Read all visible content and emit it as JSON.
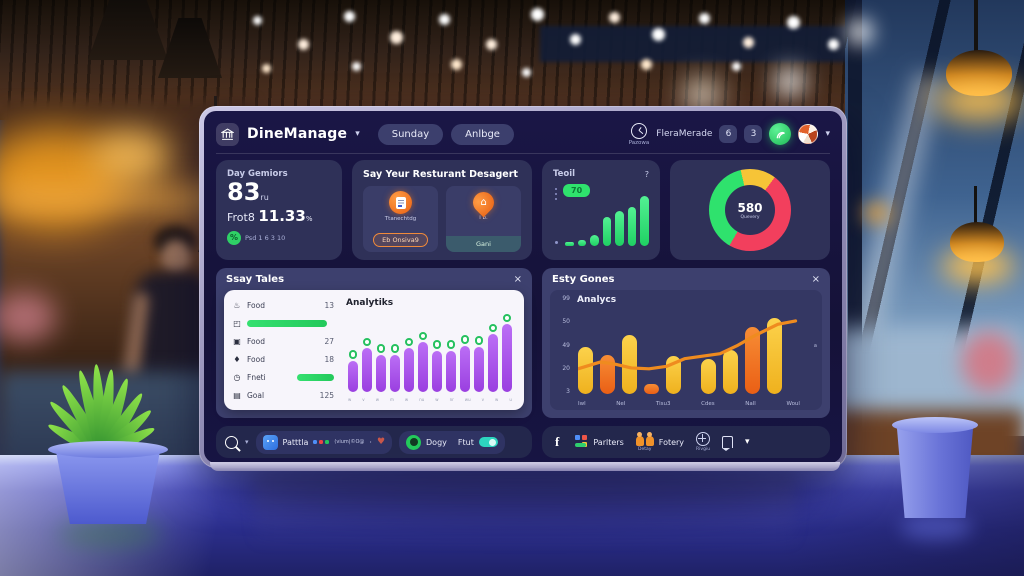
{
  "header": {
    "app_name": "DineManage",
    "dropdown_glyph": "▾",
    "nav_pills": [
      {
        "label": "Sunday"
      },
      {
        "label": "Anlbge"
      }
    ],
    "clock_caption": "Pazowa",
    "account_name": "FleraMerade",
    "badges": [
      {
        "value": "6"
      },
      {
        "value": "3"
      }
    ]
  },
  "stats_card": {
    "title": "Day Gemiors",
    "value": "83",
    "value_suffix": "ru",
    "row_label": "Frot8",
    "row_value": "11.33",
    "row_suffix": "%",
    "footer_badge": "%",
    "footer_text": "Psd 1 6 3 10"
  },
  "promo_card": {
    "title": "Say Yeur Resturant Desagert",
    "tile1": {
      "caption": "Ttanechtdg",
      "button_label": "Eb Onsiva9"
    },
    "tile2": {
      "caption": "i  b.",
      "button_label": "Gani",
      "pin_glyph": "⌂"
    }
  },
  "growth_card": {
    "title": "Teoil",
    "help_label": "?",
    "badge_label": "70",
    "bars": [
      6,
      10,
      18,
      46,
      56,
      63,
      80
    ]
  },
  "donut_card": {
    "center_value": "580",
    "center_caption": "Quevery",
    "start_angle": 210,
    "segments": [
      {
        "name": "green",
        "value": 38,
        "color": "#2fe26d"
      },
      {
        "name": "yellow",
        "value": 14,
        "color": "#f6c437"
      },
      {
        "name": "red",
        "value": 48,
        "color": "#f23f5d"
      }
    ]
  },
  "orders_panel": {
    "title": "Ssay Tales",
    "close_label": "×",
    "rows": [
      {
        "glyph": "♨",
        "label": "Food",
        "value": "13"
      },
      {
        "glyph": "◰",
        "progress": 92
      },
      {
        "glyph": "▣",
        "label": "Food",
        "value": "27"
      },
      {
        "glyph": "♦",
        "label": "Food",
        "value": "18"
      },
      {
        "glyph": "◷",
        "label": "Fneti",
        "progress": 58
      },
      {
        "glyph": "▤",
        "label": "Goal",
        "value": "125"
      }
    ],
    "chart": {
      "title": "Analytiks",
      "bars": [
        40,
        56,
        48,
        48,
        56,
        64,
        53,
        53,
        59,
        58,
        74,
        90
      ],
      "x_labels": [
        "w",
        "v",
        "w",
        "m",
        "w",
        "nu",
        "w",
        "nr",
        "wu",
        "v",
        "w",
        "u"
      ]
    }
  },
  "sales_panel": {
    "title": "Esty Gones",
    "close_label": "×",
    "chart": {
      "title": "Analycs",
      "y_labels": [
        "99",
        "50",
        "49",
        "20",
        "3"
      ],
      "bars": [
        {
          "v": 56,
          "c": "yellow"
        },
        {
          "v": 47,
          "c": "orange"
        },
        {
          "v": 70,
          "c": "yellow"
        },
        {
          "v": 12,
          "c": "orange"
        },
        {
          "v": 45,
          "c": "yellow"
        },
        {
          "v": 42,
          "c": "yellow"
        },
        {
          "v": 52,
          "c": "yellow"
        },
        {
          "v": 80,
          "c": "orange"
        },
        {
          "v": 90,
          "c": "yellow"
        }
      ],
      "x_labels": [
        "Iwl",
        "Nel",
        "Tisu3",
        "Cdes",
        "Nall",
        "Woul"
      ],
      "line": [
        [
          0,
          70
        ],
        [
          10,
          62
        ],
        [
          16,
          64
        ],
        [
          24,
          69
        ],
        [
          32,
          70
        ],
        [
          40,
          67
        ],
        [
          48,
          58
        ],
        [
          56,
          55
        ],
        [
          64,
          52
        ],
        [
          72,
          42
        ],
        [
          80,
          30
        ],
        [
          90,
          17
        ],
        [
          98,
          13
        ]
      ],
      "line_color": "#ef8b1f",
      "side_label": "a"
    }
  },
  "bottom_left": {
    "app_label": "Patttla",
    "cluster_caption": "(vium|©O@",
    "dot": "·",
    "heart": "♥",
    "pill2": {
      "label": "Dogy",
      "print_label": "Ftut"
    }
  },
  "bottom_right": {
    "facebook": "f",
    "group1_label": "Parlters",
    "group2_caption": "Detay",
    "group2_label": "Fotery",
    "group3_caption": "Rivgiu",
    "chevron": "▾"
  },
  "chart_data": [
    {
      "type": "bar",
      "title": "Teoil",
      "values": [
        6,
        10,
        18,
        46,
        56,
        63,
        80
      ],
      "color": "#2fe26d",
      "badge": "70"
    },
    {
      "type": "pie",
      "title": "580 Quevery",
      "labels": [
        "green",
        "yellow",
        "red"
      ],
      "values": [
        38,
        14,
        48
      ],
      "colors": [
        "#2fe26d",
        "#f6c437",
        "#f23f5d"
      ]
    },
    {
      "type": "bar",
      "title": "Analytiks",
      "values": [
        40,
        56,
        48,
        48,
        56,
        64,
        53,
        53,
        59,
        58,
        74,
        90
      ],
      "color": "#a45ce8"
    },
    {
      "type": "bar",
      "title": "Analycs",
      "y_labels": [
        "99",
        "50",
        "49",
        "20",
        "3"
      ],
      "values": [
        56,
        47,
        70,
        12,
        45,
        42,
        52,
        80,
        90
      ],
      "bar_colors": [
        "#f6c437",
        "#f07824",
        "#f6c437",
        "#f07824",
        "#f6c437",
        "#f6c437",
        "#f6c437",
        "#f07824",
        "#f6c437"
      ],
      "x_labels": [
        "Iwl",
        "Nel",
        "Tisu3",
        "Cdes",
        "Nall",
        "Woul"
      ],
      "line": [
        [
          0,
          70
        ],
        [
          10,
          62
        ],
        [
          16,
          64
        ],
        [
          24,
          69
        ],
        [
          32,
          70
        ],
        [
          40,
          67
        ],
        [
          48,
          58
        ],
        [
          56,
          55
        ],
        [
          64,
          52
        ],
        [
          72,
          42
        ],
        [
          80,
          30
        ],
        [
          90,
          17
        ],
        [
          98,
          13
        ]
      ]
    }
  ]
}
